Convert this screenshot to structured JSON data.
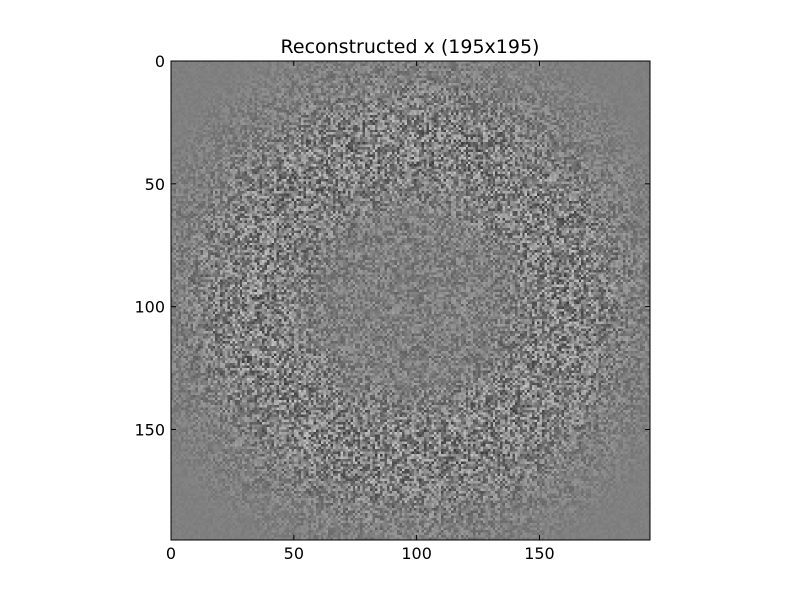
{
  "chart_data": {
    "type": "heatmap",
    "title": "Reconstructed x (195x195)",
    "xlabel": "",
    "ylabel": "",
    "colormap": "gray",
    "rows": 195,
    "cols": 195,
    "xlim": [
      0,
      195
    ],
    "ylim": [
      195,
      0
    ],
    "x_ticks": [
      0,
      50,
      100,
      150
    ],
    "y_ticks": [
      0,
      50,
      100,
      150
    ],
    "grid": false,
    "background_gray_level": 0.5,
    "description_of_pattern": ""
  }
}
